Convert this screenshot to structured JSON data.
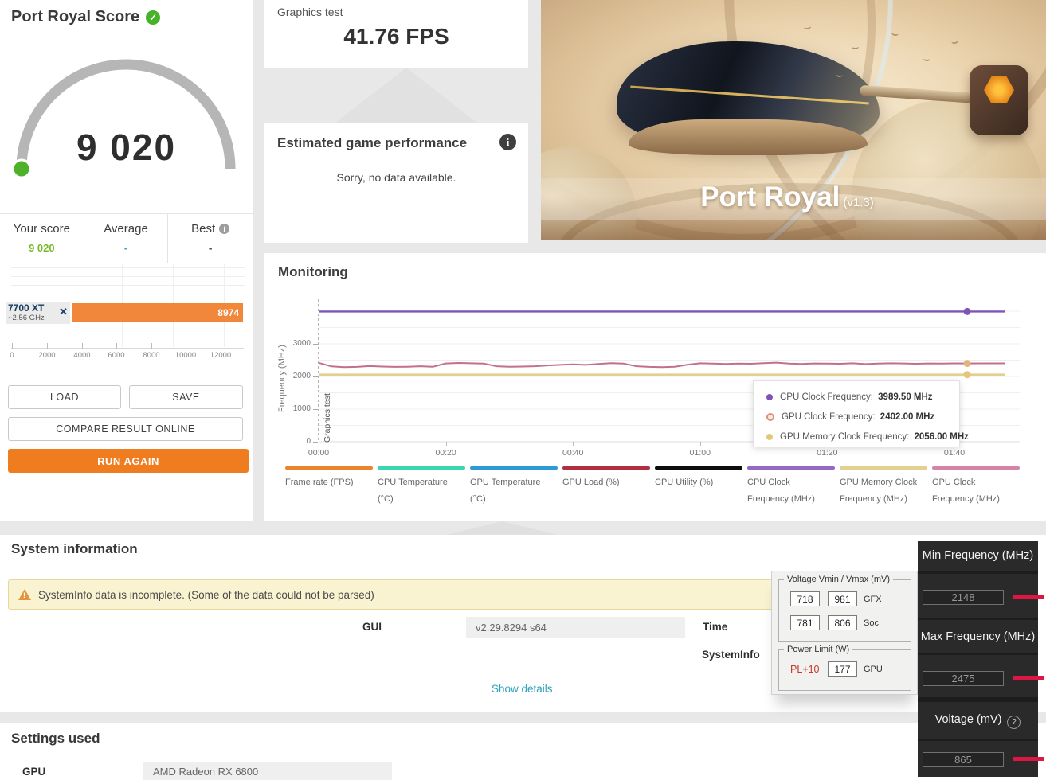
{
  "score_panel": {
    "title": "Port Royal Score",
    "score": "9 020",
    "columns": [
      {
        "label": "Your score",
        "value": "9 020"
      },
      {
        "label": "Average",
        "value": "-"
      },
      {
        "label": "Best",
        "value": "-"
      }
    ],
    "bar": {
      "gpu": "7700 XT",
      "clock": "~2,56 GHz",
      "value": "8974"
    },
    "axis_ticks": [
      "0",
      "2000",
      "4000",
      "6000",
      "8000",
      "10000",
      "12000"
    ],
    "buttons": {
      "load": "LOAD",
      "save": "SAVE",
      "compare": "COMPARE RESULT ONLINE",
      "run_again": "RUN AGAIN"
    }
  },
  "graphics_test": {
    "label": "Graphics test",
    "value": "41.76 FPS"
  },
  "estimated": {
    "title": "Estimated game performance",
    "message": "Sorry, no data available."
  },
  "hero": {
    "title": "Port Royal",
    "version": "(v1.3)"
  },
  "monitoring": {
    "title": "Monitoring",
    "ylabel": "Frequency (MHz)",
    "phase_label": "Graphics test",
    "y_ticks": [
      "0",
      "1000",
      "2000",
      "3000"
    ],
    "x_ticks": [
      "00:00",
      "00:20",
      "00:40",
      "01:00",
      "01:20",
      "01:40"
    ],
    "tooltip": [
      {
        "label": "CPU Clock Frequency:",
        "value": "3989.50 MHz",
        "color": "#7e55b4",
        "style": "filled"
      },
      {
        "label": "GPU Clock Frequency:",
        "value": "2402.00 MHz",
        "color": "#dd8f7a",
        "style": "ring"
      },
      {
        "label": "GPU Memory Clock Frequency:",
        "value": "2056.00 MHz",
        "color": "#e0c979",
        "style": "filled"
      }
    ],
    "legend": [
      {
        "label": "Frame rate (FPS)",
        "color": "#e8862c"
      },
      {
        "label": "CPU Temperature (°C)",
        "color": "#3ad6b1"
      },
      {
        "label": "GPU Temperature (°C)",
        "color": "#2d9bd8"
      },
      {
        "label": "GPU Load (%)",
        "color": "#b13040"
      },
      {
        "label": "CPU Utility (%)",
        "color": "#0d0d0d"
      },
      {
        "label": "CPU Clock Frequency (MHz)",
        "color": "#9667c5"
      },
      {
        "label": "GPU Memory Clock Frequency (MHz)",
        "color": "#e2cf92"
      },
      {
        "label": "GPU Clock Frequency (MHz)",
        "color": "#d583a8"
      }
    ]
  },
  "chart_data": {
    "monitoring": {
      "type": "line",
      "title": "Monitoring",
      "ylabel": "Frequency (MHz)",
      "ylim": [
        0,
        4200
      ],
      "x_range_s": [
        0,
        108
      ],
      "step_s": 2,
      "marker_time_s": 102,
      "grid": true,
      "series": [
        {
          "name": "CPU Clock Frequency (MHz)",
          "color": "#7e55b4",
          "width": 2.4,
          "value": 3989.5,
          "marker_color": "#7e55b4"
        },
        {
          "name": "GPU Clock Frequency (MHz)",
          "color": "#c2708e",
          "width": 2,
          "values": [
            2420,
            2310,
            2285,
            2295,
            2320,
            2305,
            2295,
            2300,
            2315,
            2300,
            2400,
            2415,
            2405,
            2395,
            2315,
            2300,
            2305,
            2315,
            2340,
            2355,
            2370,
            2355,
            2385,
            2410,
            2395,
            2315,
            2295,
            2285,
            2300,
            2360,
            2405,
            2395,
            2385,
            2395,
            2390,
            2410,
            2425,
            2395,
            2385,
            2400,
            2395,
            2390,
            2405,
            2380,
            2395,
            2405,
            2400,
            2390,
            2400,
            2398,
            2402,
            2400,
            2402,
            2402,
            2402
          ],
          "marker_color": "#e2b57c"
        },
        {
          "name": "GPU Memory Clock Frequency (MHz)",
          "color": "#e4cf8c",
          "width": 2.6,
          "value": 2056,
          "marker_color": "#e2c779"
        }
      ]
    },
    "score_bar": {
      "type": "bar",
      "categories": [
        "7700 XT ~2,56 GHz"
      ],
      "values": [
        8974
      ],
      "xlim": [
        0,
        13000
      ],
      "x_ticks": [
        0,
        2000,
        4000,
        6000,
        8000,
        10000,
        12000
      ]
    }
  },
  "system_info": {
    "title": "System information",
    "warning": "SystemInfo data is incomplete. (Some of the data could not be parsed)",
    "gui_label": "GUI",
    "gui_value": "v2.29.8294 s64",
    "time_label": "Time",
    "systeminfo_label": "SystemInfo",
    "show_details": "Show details"
  },
  "overlay": {
    "voltage_group": {
      "title": "Voltage Vmin / Vmax (mV)",
      "rows": [
        {
          "min": "718",
          "max": "981",
          "label": "GFX"
        },
        {
          "min": "781",
          "max": "806",
          "label": "Soc"
        }
      ]
    },
    "power_group": {
      "title": "Power Limit (W)",
      "pl": "PL+10",
      "value": "177",
      "label": "GPU"
    }
  },
  "tuning_panel": {
    "sections": [
      {
        "label": "Min Frequency (MHz)",
        "value": "2148"
      },
      {
        "label": "Max Frequency (MHz)",
        "value": "2475"
      },
      {
        "label": "Voltage (mV)",
        "value": "865"
      }
    ]
  },
  "settings": {
    "title": "Settings used",
    "gpu_label": "GPU",
    "gpu_value": "AMD Radeon RX 6800"
  }
}
